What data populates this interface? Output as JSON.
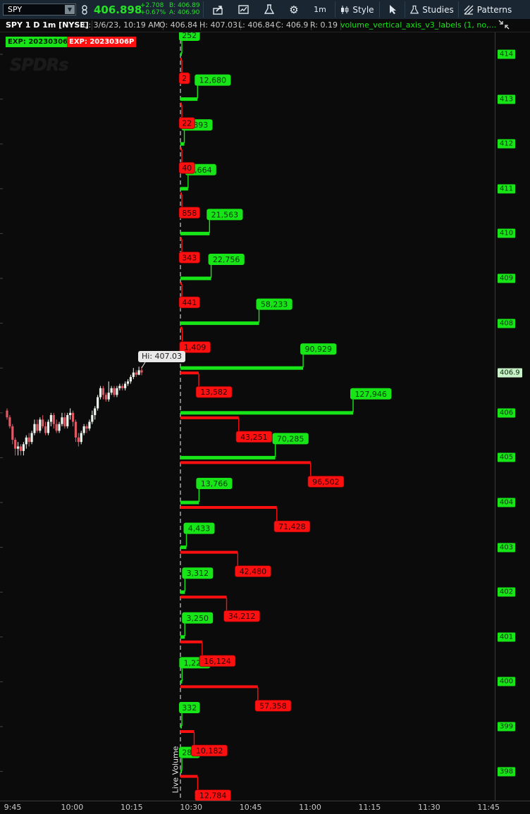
{
  "toolbar": {
    "symbol": "SPY",
    "last_price": "406.898",
    "net_change": "+2.708",
    "pct_change": "+0.67%",
    "bid": "B: 406.89",
    "ask": "A: 406.90",
    "timeframe": "1m",
    "style_label": "Style",
    "studies_label": "Studies",
    "patterns_label": "Patterns"
  },
  "infobar": {
    "chart_desc": "SPY 1 D 1m [NYSE]",
    "date": "D: 3/6/23, 10:19 AM",
    "open": "O: 406.84",
    "high": "H: 407.03",
    "low": "L: 406.84",
    "close": "C: 406.9",
    "range": "R: 0.19",
    "study": "volume_vertical_axis_v3_labels (1, no,..."
  },
  "expirations": {
    "calls": "EXP: 20230306C",
    "puts": "EXP: 20230306P"
  },
  "watermark": "SPDRs",
  "hi_label": "Hi: 407.03",
  "live_volume_label": "Live Volume",
  "colors": {
    "green": "#17e517",
    "red": "#ff1010",
    "price_tag": "#c8f2c8"
  },
  "y_axis": {
    "labels": [
      "414",
      "413",
      "412",
      "411",
      "410",
      "409",
      "408",
      "406",
      "405",
      "404",
      "403",
      "402",
      "401",
      "400",
      "399",
      "398"
    ],
    "current_price": "406.9"
  },
  "x_axis": {
    "labels": [
      "9:45",
      "10:00",
      "10:15",
      "10:30",
      "10:45",
      "11:00",
      "11:15",
      "11:30",
      "11:45"
    ]
  },
  "chart_data": {
    "type": "bar",
    "title": "",
    "y_unit": "price",
    "strikes": [
      414,
      413,
      412,
      411,
      410,
      409,
      408,
      407,
      406,
      405,
      404,
      403,
      402,
      401,
      400,
      399,
      398
    ],
    "calls": [
      {
        "strike": 414,
        "label": "252",
        "value": 252
      },
      {
        "strike": 413,
        "label": "12,680",
        "value": 12680
      },
      {
        "strike": 412,
        "label": "2,893",
        "value": 2893
      },
      {
        "strike": 411,
        "label": "5,664",
        "value": 5664
      },
      {
        "strike": 410,
        "label": "21,563",
        "value": 21563
      },
      {
        "strike": 409,
        "label": "22,756",
        "value": 22756
      },
      {
        "strike": 408,
        "label": "58,233",
        "value": 58233
      },
      {
        "strike": 407,
        "label": "90,929",
        "value": 90929
      },
      {
        "strike": 406,
        "label": "127,946",
        "value": 127946
      },
      {
        "strike": 405,
        "label": "70,285",
        "value": 70285
      },
      {
        "strike": 404,
        "label": "13,766",
        "value": 13766
      },
      {
        "strike": 403,
        "label": "4,433",
        "value": 4433
      },
      {
        "strike": 402,
        "label": "3,312",
        "value": 3312
      },
      {
        "strike": 401,
        "label": "3,250",
        "value": 3250
      },
      {
        "strike": 400,
        "label": "1,229",
        "value": 1229
      },
      {
        "strike": 399,
        "label": "332",
        "value": 332
      },
      {
        "strike": 398,
        "label": "289",
        "value": 289
      }
    ],
    "puts": [
      {
        "strike": 414,
        "label": "2",
        "value": 2
      },
      {
        "strike": 413,
        "label": "22",
        "value": 22
      },
      {
        "strike": 412,
        "label": "40",
        "value": 40
      },
      {
        "strike": 411,
        "label": "858",
        "value": 858
      },
      {
        "strike": 410,
        "label": "343",
        "value": 343
      },
      {
        "strike": 409,
        "label": "441",
        "value": 441
      },
      {
        "strike": 408,
        "label": "1,409",
        "value": 1409
      },
      {
        "strike": 407,
        "label": "13,582",
        "value": 13582
      },
      {
        "strike": 406,
        "label": "43,251",
        "value": 43251
      },
      {
        "strike": 405,
        "label": "96,502",
        "value": 96502
      },
      {
        "strike": 404,
        "label": "71,428",
        "value": 71428
      },
      {
        "strike": 403,
        "label": "42,480",
        "value": 42480
      },
      {
        "strike": 402,
        "label": "34,212",
        "value": 34212
      },
      {
        "strike": 401,
        "label": "16,124",
        "value": 16124
      },
      {
        "strike": 400,
        "label": "57,358",
        "value": 57358
      },
      {
        "strike": 399,
        "label": "10,182",
        "value": 10182
      },
      {
        "strike": 398,
        "label": "12,784",
        "value": 12784
      }
    ],
    "candles": [
      [
        406.05,
        405.9,
        406.1,
        405.85
      ],
      [
        405.9,
        405.7,
        405.95,
        405.65
      ],
      [
        405.7,
        405.4,
        405.75,
        405.3
      ],
      [
        405.4,
        405.2,
        405.45,
        405.05
      ],
      [
        405.2,
        405.25,
        405.35,
        405.05
      ],
      [
        405.25,
        405.15,
        405.3,
        405.05
      ],
      [
        405.15,
        405.3,
        405.35,
        405.05
      ],
      [
        405.3,
        405.45,
        405.5,
        405.2
      ],
      [
        405.45,
        405.35,
        405.55,
        405.25
      ],
      [
        405.35,
        405.55,
        405.6,
        405.3
      ],
      [
        405.55,
        405.75,
        405.85,
        405.5
      ],
      [
        405.75,
        405.6,
        405.85,
        405.55
      ],
      [
        405.6,
        405.85,
        405.9,
        405.55
      ],
      [
        405.85,
        405.7,
        405.95,
        405.65
      ],
      [
        405.7,
        405.55,
        405.8,
        405.5
      ],
      [
        405.55,
        405.8,
        405.85,
        405.5
      ],
      [
        405.8,
        405.95,
        406.0,
        405.7
      ],
      [
        405.95,
        405.75,
        406.0,
        405.65
      ],
      [
        405.75,
        405.6,
        405.85,
        405.55
      ],
      [
        405.6,
        405.75,
        405.8,
        405.55
      ],
      [
        405.75,
        405.9,
        406.0,
        405.7
      ],
      [
        405.9,
        405.7,
        406.0,
        405.65
      ],
      [
        405.7,
        405.95,
        406.0,
        405.65
      ],
      [
        405.95,
        406.0,
        406.1,
        405.85
      ],
      [
        406.0,
        405.8,
        406.05,
        405.7
      ],
      [
        405.8,
        405.45,
        405.85,
        405.35
      ],
      [
        405.45,
        405.35,
        405.55,
        405.25
      ],
      [
        405.35,
        405.55,
        405.6,
        405.3
      ],
      [
        405.55,
        405.7,
        405.75,
        405.5
      ],
      [
        405.7,
        405.65,
        405.75,
        405.55
      ],
      [
        405.65,
        405.8,
        405.85,
        405.6
      ],
      [
        405.8,
        405.95,
        406.05,
        405.75
      ],
      [
        405.95,
        406.1,
        406.15,
        405.85
      ],
      [
        406.1,
        406.35,
        406.4,
        406.05
      ],
      [
        406.35,
        406.55,
        406.6,
        406.3
      ],
      [
        406.55,
        406.4,
        406.6,
        406.3
      ],
      [
        406.4,
        406.3,
        406.45,
        406.25
      ],
      [
        406.3,
        406.45,
        406.7,
        406.25
      ],
      [
        406.45,
        406.55,
        406.6,
        406.4
      ],
      [
        406.55,
        406.4,
        406.6,
        406.35
      ],
      [
        406.4,
        406.55,
        406.6,
        406.35
      ],
      [
        406.55,
        406.6,
        406.65,
        406.5
      ],
      [
        406.6,
        406.55,
        406.65,
        406.5
      ],
      [
        406.55,
        406.65,
        406.7,
        406.5
      ],
      [
        406.65,
        406.7,
        406.75,
        406.6
      ],
      [
        406.7,
        406.8,
        406.85,
        406.65
      ],
      [
        406.8,
        406.9,
        407.0,
        406.75
      ],
      [
        406.9,
        406.85,
        406.95,
        406.8
      ],
      [
        406.85,
        406.95,
        407.03,
        406.84
      ],
      [
        406.95,
        406.9,
        407.03,
        406.84
      ]
    ]
  }
}
